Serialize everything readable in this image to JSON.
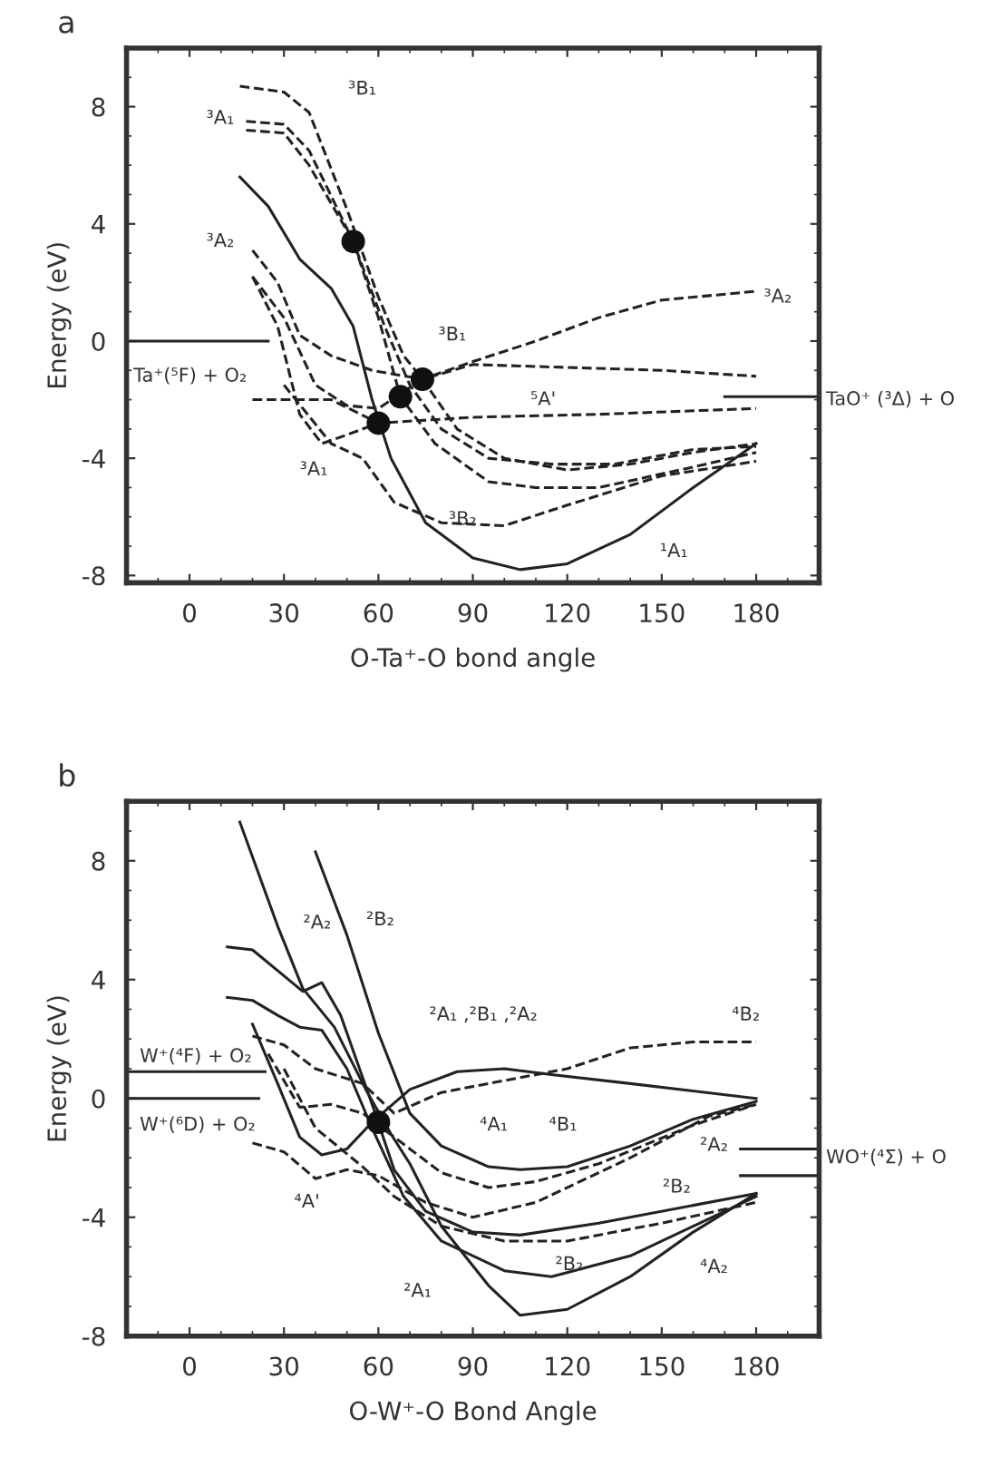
{
  "chart_data": [
    {
      "type": "line",
      "title": "a",
      "xlabel": "O-Ta⁺-O bond angle",
      "ylabel": "Energy (eV)",
      "xlim": [
        -20,
        200
      ],
      "ylim": [
        -8.25,
        10
      ],
      "xticks": [
        0,
        30,
        60,
        90,
        120,
        150,
        180
      ],
      "yticks": [
        -8,
        -4,
        0,
        4,
        8
      ],
      "grid": false,
      "legend": false,
      "series": [
        {
          "color": "#222222",
          "line_style": "dashed",
          "x": [
            16,
            30,
            38,
            50,
            60,
            68,
            74,
            85,
            100,
            120,
            140,
            160,
            180
          ],
          "values": [
            8.7,
            8.5,
            7.8,
            4.5,
            1.5,
            -0.5,
            -1.3,
            -3.0,
            -4.0,
            -4.4,
            -4.2,
            -3.8,
            -3.5
          ]
        },
        {
          "color": "#222222",
          "line_style": "dashed",
          "x": [
            18,
            30,
            38,
            52,
            62,
            70,
            80,
            95,
            115,
            135,
            160,
            180
          ],
          "values": [
            7.5,
            7.4,
            6.5,
            3.4,
            0.5,
            -1.5,
            -3.0,
            -4.0,
            -4.2,
            -4.2,
            -3.7,
            -3.6
          ]
        },
        {
          "color": "#222222",
          "line_style": "dashed",
          "x": [
            18,
            30,
            38,
            52,
            60,
            67,
            78,
            95,
            110,
            130,
            160,
            180
          ],
          "values": [
            7.2,
            7.1,
            6.0,
            3.4,
            0.8,
            -1.9,
            -3.5,
            -4.8,
            -5.0,
            -5.0,
            -4.3,
            -3.8
          ]
        },
        {
          "color": "#222222",
          "line_style": "dashed",
          "x": [
            20,
            28,
            35,
            45,
            58,
            74,
            90,
            110,
            130,
            150,
            180
          ],
          "values": [
            3.1,
            2.0,
            0.2,
            -0.5,
            -1.0,
            -1.3,
            -0.7,
            0.0,
            0.8,
            1.4,
            1.7
          ]
        },
        {
          "color": "#222222",
          "line_style": "dashed",
          "x": [
            20,
            30,
            40,
            50,
            60,
            74,
            90,
            120,
            150,
            180
          ],
          "values": [
            2.2,
            0.8,
            -1.5,
            -2.2,
            -2.3,
            -1.3,
            -0.8,
            -0.9,
            -1.0,
            -1.2
          ]
        },
        {
          "color": "#222222",
          "line_style": "dashed",
          "x": [
            20,
            45,
            60,
            90,
            130,
            180
          ],
          "values": [
            -2.0,
            -2.0,
            -2.8,
            -2.6,
            -2.5,
            -2.3
          ]
        },
        {
          "color": "#222222",
          "line_style": "dashed",
          "x": [
            20,
            28,
            35,
            42,
            50,
            60
          ],
          "values": [
            2.2,
            0.5,
            -2.5,
            -3.5,
            -3.2,
            -2.8
          ]
        },
        {
          "color": "#222222",
          "line_style": "dashed",
          "x": [
            30,
            45,
            55,
            65,
            80,
            100,
            120,
            150,
            180
          ],
          "values": [
            -1.5,
            -3.5,
            -4.0,
            -5.5,
            -6.2,
            -6.3,
            -5.6,
            -4.6,
            -4.1
          ]
        },
        {
          "color": "#222222",
          "line_style": "solid",
          "x": [
            16,
            25,
            35,
            45,
            52,
            58,
            64,
            75,
            90,
            105,
            120,
            140,
            160,
            180
          ],
          "values": [
            5.6,
            4.6,
            2.8,
            1.8,
            0.5,
            -2.0,
            -4.0,
            -6.2,
            -7.4,
            -7.8,
            -7.6,
            -6.6,
            -5.0,
            -3.5
          ]
        },
        {
          "color": "#222222",
          "line_style": "solid",
          "x": [
            -20,
            25
          ],
          "values": [
            0,
            0
          ]
        },
        {
          "color": "#222222",
          "line_style": "solid",
          "x": [
            170,
            200
          ],
          "values": [
            -1.9,
            -1.9
          ]
        },
        {
          "type": "scatter",
          "marker": "circle",
          "color": "#111111",
          "x": [
            52,
            60,
            67,
            74
          ],
          "values": [
            3.4,
            -2.8,
            -1.9,
            -1.3
          ]
        }
      ],
      "annotations": [
        "³B₁",
        "³A₁",
        "³A₂",
        "³B₁",
        "⁵A'",
        "³A₁",
        "³B₂",
        "¹A₁",
        "³A₂",
        "Ta⁺(⁵F) + O₂",
        "TaO⁺ (³Δ) + O"
      ]
    },
    {
      "type": "line",
      "title": "b",
      "xlabel": "O-W⁺-O Bond Angle",
      "ylabel": "Energy (eV)",
      "xlim": [
        -20,
        200
      ],
      "ylim": [
        -8,
        10
      ],
      "xticks": [
        0,
        30,
        60,
        90,
        120,
        150,
        180
      ],
      "yticks": [
        -8,
        -4,
        0,
        4,
        8
      ],
      "grid": false,
      "legend": false,
      "series": [
        {
          "color": "#222222",
          "line_style": "solid",
          "x": [
            16,
            28,
            36,
            46,
            56,
            64,
            70,
            80,
            95,
            105,
            120,
            140,
            160,
            180
          ],
          "values": [
            9.3,
            5.8,
            3.7,
            2.4,
            0.3,
            -1.2,
            -2.2,
            -4.3,
            -6.3,
            -7.3,
            -7.1,
            -6.0,
            -4.5,
            -3.2
          ]
        },
        {
          "color": "#222222",
          "line_style": "solid",
          "x": [
            40,
            50,
            60,
            70,
            80,
            95,
            105,
            120,
            140,
            160,
            180
          ],
          "values": [
            8.3,
            5.5,
            2.2,
            -0.5,
            -1.6,
            -2.3,
            -2.4,
            -2.3,
            -1.6,
            -0.7,
            -0.1
          ]
        },
        {
          "color": "#222222",
          "line_style": "solid",
          "x": [
            12,
            20,
            28,
            36,
            42,
            48,
            58,
            65,
            75,
            90,
            105,
            130,
            160,
            180
          ],
          "values": [
            5.1,
            5.0,
            4.3,
            3.6,
            3.9,
            2.8,
            -0.2,
            -2.4,
            -3.8,
            -4.5,
            -4.6,
            -4.2,
            -3.6,
            -3.2
          ]
        },
        {
          "color": "#222222",
          "line_style": "solid",
          "x": [
            12,
            20,
            28,
            35,
            42,
            50,
            58,
            68,
            80,
            100,
            115,
            140,
            160,
            180
          ],
          "values": [
            3.4,
            3.3,
            2.8,
            2.4,
            2.3,
            1.0,
            -1.0,
            -3.3,
            -4.8,
            -5.8,
            -6.0,
            -5.3,
            -4.3,
            -3.3
          ]
        },
        {
          "color": "#222222",
          "line_style": "solid",
          "x": [
            20,
            28,
            35,
            42,
            50,
            58,
            70,
            85,
            100,
            115,
            140,
            180
          ],
          "values": [
            2.5,
            0.5,
            -1.3,
            -1.9,
            -1.7,
            -0.8,
            0.3,
            0.9,
            1.0,
            0.8,
            0.5,
            0.0
          ]
        },
        {
          "color": "#222222",
          "line_style": "dashed",
          "x": [
            20,
            30,
            40,
            55,
            65,
            80,
            100,
            120,
            140,
            160,
            180
          ],
          "values": [
            2.1,
            1.8,
            1.0,
            0.5,
            -0.5,
            0.2,
            0.6,
            1.0,
            1.7,
            1.9,
            1.9
          ]
        },
        {
          "color": "#222222",
          "line_style": "dashed",
          "x": [
            25,
            35,
            45,
            55,
            65,
            80,
            95,
            110,
            130,
            160,
            180
          ],
          "values": [
            1.5,
            -0.3,
            -0.2,
            -0.5,
            -1.3,
            -2.5,
            -3.0,
            -2.8,
            -2.2,
            -0.9,
            -0.2
          ]
        },
        {
          "color": "#222222",
          "line_style": "dashed",
          "x": [
            20,
            30,
            40,
            50,
            60,
            75,
            90,
            110,
            140,
            165,
            180
          ],
          "values": [
            -1.5,
            -1.8,
            -2.7,
            -2.4,
            -2.6,
            -3.5,
            -4.0,
            -3.5,
            -2.0,
            -0.6,
            -0.2
          ]
        },
        {
          "color": "#222222",
          "line_style": "dashed",
          "x": [
            30,
            40,
            55,
            65,
            80,
            100,
            120,
            150,
            180
          ],
          "values": [
            1.0,
            -1.0,
            -2.3,
            -3.3,
            -4.3,
            -4.8,
            -4.8,
            -4.2,
            -3.5
          ]
        },
        {
          "color": "#222222",
          "line_style": "solid",
          "x": [
            -20,
            24
          ],
          "values": [
            0.9,
            0.9
          ]
        },
        {
          "color": "#222222",
          "line_style": "solid",
          "x": [
            -20,
            22
          ],
          "values": [
            0,
            0
          ]
        },
        {
          "color": "#222222",
          "line_style": "solid",
          "x": [
            175,
            200
          ],
          "values": [
            -1.7,
            -1.7
          ]
        },
        {
          "color": "#222222",
          "line_style": "solid",
          "x": [
            175,
            200
          ],
          "values": [
            -2.6,
            -2.6
          ]
        },
        {
          "type": "scatter",
          "marker": "circle",
          "color": "#111111",
          "x": [
            60
          ],
          "values": [
            -0.8
          ]
        }
      ],
      "annotations": [
        "²A₂",
        "²B₂",
        "²A₁ ,²B₁ ,²A₂",
        "⁴B₂",
        "W⁺(⁴F) + O₂",
        "W⁺(⁶D) + O₂",
        "⁴A₁",
        "⁴B₁",
        "²A₂",
        "²B₂",
        "²B₂",
        "⁴A₂",
        "⁴A'",
        "²A₁",
        "WO⁺(⁴Σ) + O"
      ]
    }
  ]
}
